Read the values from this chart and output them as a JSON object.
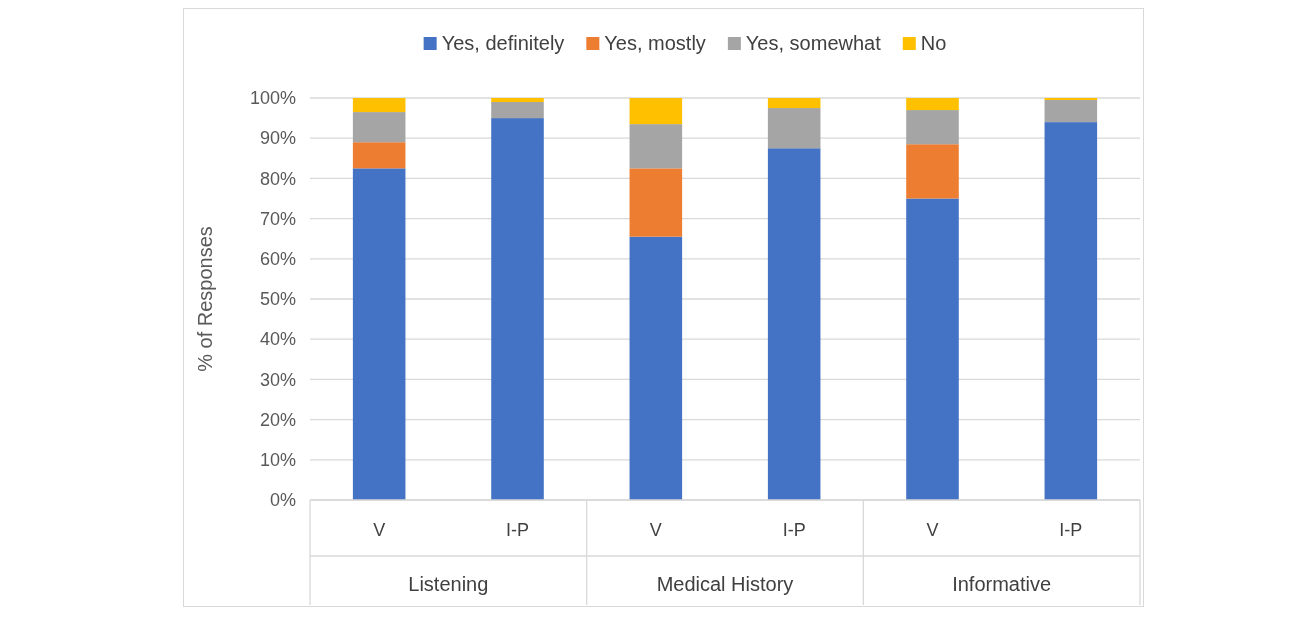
{
  "chart_data": {
    "type": "bar",
    "stacked": true,
    "ylabel": "% of Responses",
    "categories": [
      "V",
      "I-P",
      "V",
      "I-P",
      "V",
      "I-P"
    ],
    "annotations": [
      "Listening",
      "Medical History",
      "Informative"
    ],
    "series": [
      {
        "name": "Yes, definitely",
        "color": "#4472c4",
        "values": [
          82.5,
          95,
          65.5,
          87.5,
          75,
          94
        ]
      },
      {
        "name": "Yes, mostly",
        "color": "#ed7d31",
        "values": [
          6.5,
          0,
          17,
          0,
          13.5,
          0
        ]
      },
      {
        "name": "Yes, somewhat",
        "color": "#a5a5a5",
        "values": [
          7.5,
          4,
          11,
          10,
          8.5,
          5.5
        ]
      },
      {
        "name": "No",
        "color": "#ffc000",
        "values": [
          3.5,
          1,
          6.5,
          2.5,
          3,
          0.5
        ]
      }
    ],
    "ylim": [
      0,
      100
    ],
    "yticks": [
      {
        "value": 0,
        "label": "0%"
      },
      {
        "value": 10,
        "label": "10%"
      },
      {
        "value": 20,
        "label": "20%"
      },
      {
        "value": 30,
        "label": "30%"
      },
      {
        "value": 40,
        "label": "40%"
      },
      {
        "value": 50,
        "label": "50%"
      },
      {
        "value": 60,
        "label": "60%"
      },
      {
        "value": 70,
        "label": "70%"
      },
      {
        "value": 80,
        "label": "80%"
      },
      {
        "value": 90,
        "label": "90%"
      },
      {
        "value": 100,
        "label": "100%"
      }
    ],
    "grid": "y",
    "legend": "top"
  }
}
